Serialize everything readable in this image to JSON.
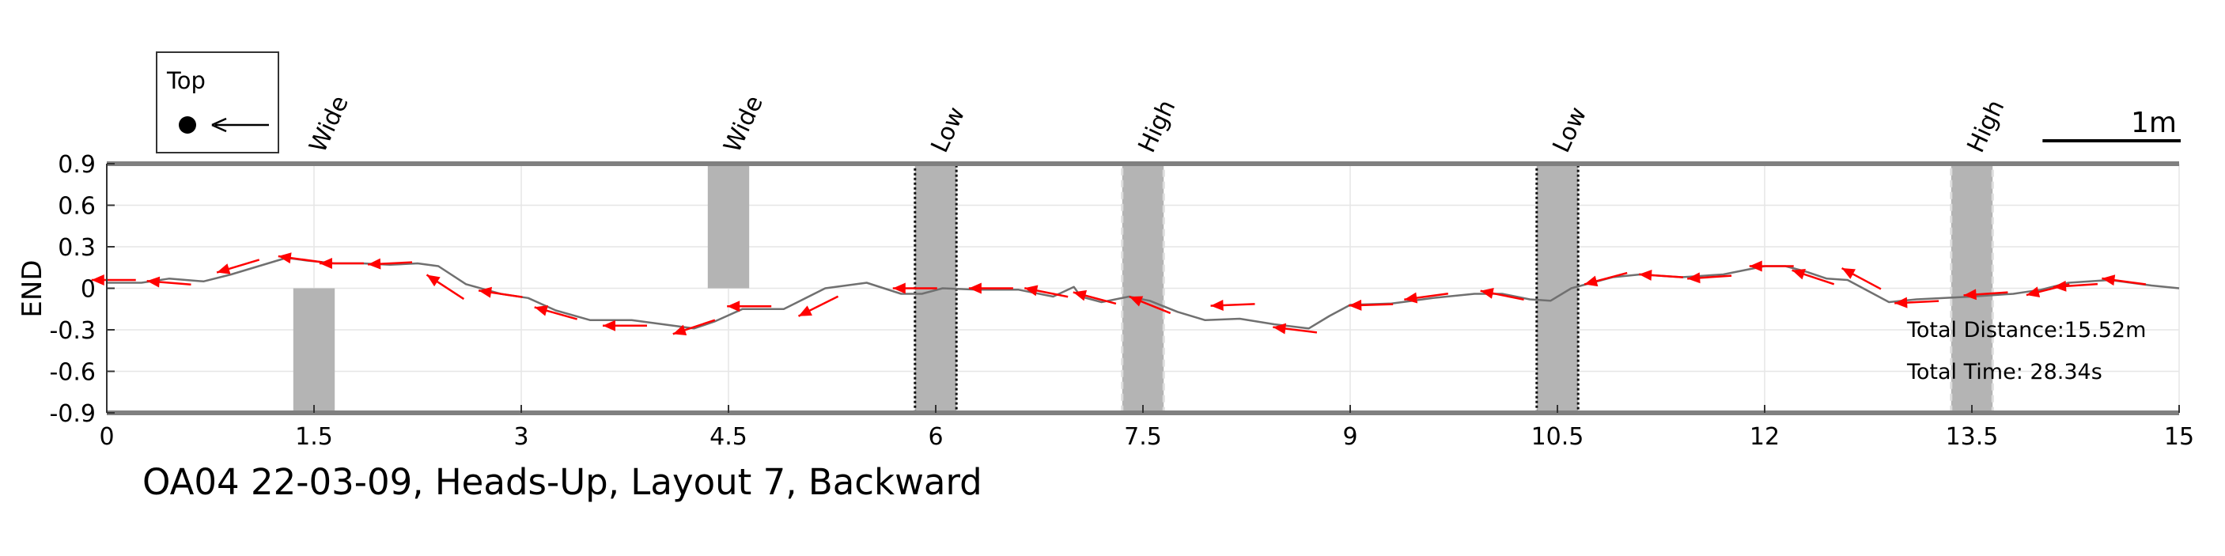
{
  "chart_data": {
    "type": "line",
    "caption": "OA04 22-03-09, Heads-Up, Layout 7, Backward",
    "ylabel": "END",
    "xlim": [
      0,
      15
    ],
    "ylim": [
      -0.9,
      0.9
    ],
    "x_ticks": [
      "0",
      "1.5",
      "3",
      "4.5",
      "6",
      "7.5",
      "9",
      "10.5",
      "12",
      "13.5",
      "15"
    ],
    "y_ticks": [
      "0.9",
      "0.6",
      "0.3",
      "0",
      "-0.3",
      "-0.6",
      "-0.9"
    ],
    "grid": true,
    "legend": {
      "title": "Top",
      "position": "top-left"
    },
    "scale_bar_label": "1m",
    "scale_bar_length": 1,
    "annotations": {
      "total_distance": "Total Distance:15.52m",
      "total_time": "Total Time: 28.34s"
    },
    "obstacles": [
      {
        "label": "Wide",
        "x_range": [
          1.35,
          1.65
        ],
        "y_range": [
          -0.9,
          0.0
        ],
        "style": "solid"
      },
      {
        "label": "Wide",
        "x_range": [
          4.35,
          4.65
        ],
        "y_range": [
          0.0,
          0.9
        ],
        "style": "solid"
      },
      {
        "label": "Low",
        "x_range": [
          5.85,
          6.15
        ],
        "y_range": [
          -0.9,
          0.9
        ],
        "style": "dotted-dark"
      },
      {
        "label": "High",
        "x_range": [
          7.35,
          7.65
        ],
        "y_range": [
          -0.9,
          0.9
        ],
        "style": "dashed-light"
      },
      {
        "label": "Low",
        "x_range": [
          10.35,
          10.65
        ],
        "y_range": [
          -0.9,
          0.9
        ],
        "style": "dotted-dark"
      },
      {
        "label": "High",
        "x_range": [
          13.35,
          13.65
        ],
        "y_range": [
          -0.9,
          0.9
        ],
        "style": "dashed-light"
      }
    ],
    "trajectory": {
      "color": "#707070",
      "x": [
        15.0,
        14.8,
        14.5,
        14.2,
        14.0,
        13.8,
        13.5,
        13.1,
        12.9,
        12.75,
        12.6,
        12.45,
        12.3,
        12.15,
        12.0,
        11.7,
        11.4,
        11.1,
        10.9,
        10.75,
        10.6,
        10.45,
        10.3,
        10.1,
        9.9,
        9.6,
        9.3,
        9.0,
        8.85,
        8.7,
        8.45,
        8.2,
        7.95,
        7.75,
        7.55,
        7.4,
        7.2,
        7.05,
        7.0,
        6.85,
        6.6,
        6.3,
        6.05,
        5.9,
        5.75,
        5.5,
        5.2,
        4.9,
        4.6,
        4.4,
        4.25,
        4.1,
        3.8,
        3.5,
        3.25,
        3.05,
        2.85,
        2.6,
        2.4,
        2.25,
        2.05,
        1.85,
        1.65,
        1.45,
        1.3,
        1.1,
        0.9,
        0.7,
        0.45,
        0.25,
        0.0
      ],
      "y": [
        0.0,
        0.02,
        0.06,
        0.04,
        -0.01,
        -0.04,
        -0.06,
        -0.08,
        -0.1,
        -0.02,
        0.06,
        0.07,
        0.12,
        0.16,
        0.16,
        0.1,
        0.08,
        0.1,
        0.08,
        0.04,
        0.0,
        -0.09,
        -0.08,
        -0.04,
        -0.04,
        -0.07,
        -0.11,
        -0.12,
        -0.2,
        -0.29,
        -0.26,
        -0.22,
        -0.23,
        -0.17,
        -0.09,
        -0.06,
        -0.1,
        -0.06,
        0.01,
        -0.06,
        -0.01,
        -0.01,
        0.0,
        -0.04,
        -0.04,
        0.04,
        0.0,
        -0.15,
        -0.15,
        -0.24,
        -0.29,
        -0.27,
        -0.23,
        -0.23,
        -0.16,
        -0.07,
        -0.04,
        0.03,
        0.16,
        0.18,
        0.17,
        0.18,
        0.18,
        0.2,
        0.22,
        0.16,
        0.1,
        0.05,
        0.07,
        0.04,
        0.04
      ]
    },
    "heading_arrows": {
      "color": "#ff0000",
      "points": [
        [
          14.6,
          0.05
        ],
        [
          14.25,
          0.02
        ],
        [
          14.05,
          -0.01
        ],
        [
          13.6,
          -0.04
        ],
        [
          13.1,
          -0.1
        ],
        [
          12.7,
          0.07
        ],
        [
          12.35,
          0.08
        ],
        [
          12.05,
          0.16
        ],
        [
          11.6,
          0.08
        ],
        [
          11.25,
          0.09
        ],
        [
          10.85,
          0.07
        ],
        [
          10.1,
          -0.05
        ],
        [
          9.55,
          -0.06
        ],
        [
          9.15,
          -0.12
        ],
        [
          8.6,
          -0.3
        ],
        [
          8.15,
          -0.12
        ],
        [
          7.55,
          -0.12
        ],
        [
          7.15,
          -0.07
        ],
        [
          6.8,
          -0.03
        ],
        [
          6.4,
          0.0
        ],
        [
          5.85,
          0.0
        ],
        [
          5.15,
          -0.13
        ],
        [
          4.65,
          -0.13
        ],
        [
          4.25,
          -0.28
        ],
        [
          3.75,
          -0.27
        ],
        [
          3.25,
          -0.18
        ],
        [
          2.85,
          -0.04
        ],
        [
          2.45,
          0.01
        ],
        [
          2.05,
          0.18
        ],
        [
          1.7,
          0.18
        ],
        [
          1.4,
          0.21
        ],
        [
          0.95,
          0.16
        ],
        [
          0.45,
          0.04
        ],
        [
          0.05,
          0.06
        ]
      ]
    }
  }
}
